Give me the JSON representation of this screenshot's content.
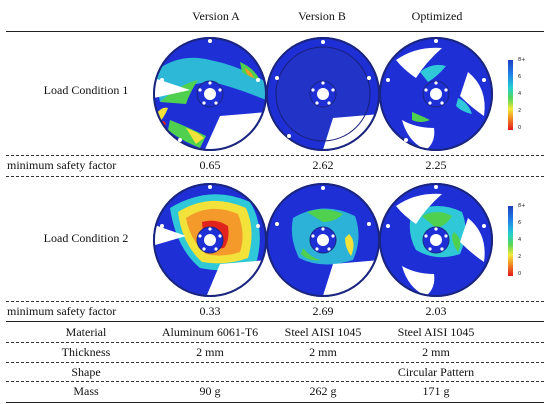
{
  "columns": [
    "Version A",
    "Version B",
    "Optimized"
  ],
  "rows": {
    "load1": {
      "label": "Load Condition 1"
    },
    "sf1": {
      "label": "minimum safety factor",
      "values": [
        "0.65",
        "2.62",
        "2.25"
      ]
    },
    "load2": {
      "label": "Load Condition 2"
    },
    "sf2": {
      "label": "minimum safety factor",
      "values": [
        "0.33",
        "2.69",
        "2.03"
      ]
    },
    "material": {
      "label": "Material",
      "values": [
        "Aluminum 6061-T6",
        "Steel AISI 1045",
        "Steel AISI 1045"
      ]
    },
    "thickness": {
      "label": "Thickness",
      "values": [
        "2 mm",
        "2 mm",
        "2 mm"
      ]
    },
    "shape": {
      "label": "Shape",
      "value": "Circular Pattern"
    },
    "mass": {
      "label": "Mass",
      "values": [
        "90 g",
        "262 g",
        "171 g"
      ]
    }
  },
  "colorbar": {
    "ticks": [
      "8+",
      "6",
      "4",
      "2",
      "0"
    ]
  },
  "colors": {
    "mesh_blue": "#1e2fd6",
    "cyan": "#2fc8d8",
    "green": "#4fd04f",
    "yellow": "#f2e23a",
    "orange": "#f39a2a",
    "red": "#e0231c"
  },
  "images": [
    {
      "icon": "version-a-load1-stress-plot"
    },
    {
      "icon": "version-b-load1-stress-plot"
    },
    {
      "icon": "optimized-load1-stress-plot"
    },
    {
      "icon": "version-a-load2-stress-plot"
    },
    {
      "icon": "version-b-load2-stress-plot"
    },
    {
      "icon": "optimized-load2-stress-plot"
    }
  ]
}
